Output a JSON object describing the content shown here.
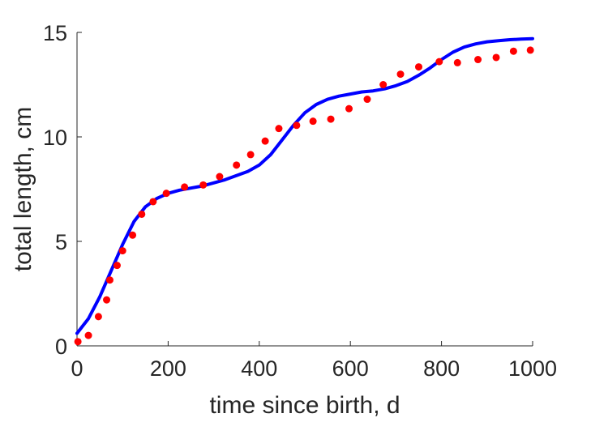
{
  "chart_data": {
    "type": "line",
    "title": "",
    "xlabel": "time since birth, d",
    "ylabel": "total length, cm",
    "xlim": [
      0,
      1000
    ],
    "ylim": [
      0,
      15
    ],
    "xticks": [
      0,
      200,
      400,
      600,
      800,
      1000
    ],
    "yticks": [
      0,
      5,
      10,
      15
    ],
    "grid": false,
    "legend": "none",
    "series": [
      {
        "style": "markers",
        "color": "#ff0000",
        "x": [
          2,
          25,
          47,
          65,
          72,
          88,
          100,
          122,
          142,
          167,
          196,
          236,
          277,
          313,
          350,
          381,
          413,
          443,
          482,
          518,
          557,
          597,
          637,
          672,
          710,
          750,
          795,
          835,
          880,
          920,
          958,
          995
        ],
        "y": [
          0.2,
          0.5,
          1.4,
          2.2,
          3.15,
          3.85,
          4.55,
          5.3,
          6.3,
          6.9,
          7.3,
          7.6,
          7.7,
          8.1,
          8.65,
          9.15,
          9.8,
          10.4,
          10.55,
          10.75,
          10.85,
          11.35,
          11.8,
          12.5,
          13.0,
          13.35,
          13.6,
          13.55,
          13.7,
          13.8,
          14.1,
          14.15
        ]
      },
      {
        "style": "line",
        "color": "#0000ff",
        "x": [
          0,
          25,
          50,
          75,
          100,
          125,
          150,
          175,
          200,
          225,
          250,
          275,
          300,
          325,
          350,
          375,
          400,
          425,
          450,
          475,
          500,
          525,
          550,
          575,
          600,
          625,
          650,
          675,
          700,
          725,
          750,
          775,
          800,
          825,
          850,
          875,
          900,
          925,
          950,
          975,
          1000
        ],
        "y": [
          0.6,
          1.3,
          2.35,
          3.6,
          4.85,
          5.95,
          6.65,
          7.05,
          7.3,
          7.45,
          7.55,
          7.65,
          7.8,
          7.95,
          8.15,
          8.35,
          8.65,
          9.15,
          9.85,
          10.55,
          11.15,
          11.55,
          11.8,
          11.95,
          12.05,
          12.15,
          12.2,
          12.3,
          12.45,
          12.65,
          12.95,
          13.3,
          13.7,
          14.05,
          14.3,
          14.45,
          14.55,
          14.6,
          14.65,
          14.68,
          14.7
        ]
      }
    ]
  }
}
